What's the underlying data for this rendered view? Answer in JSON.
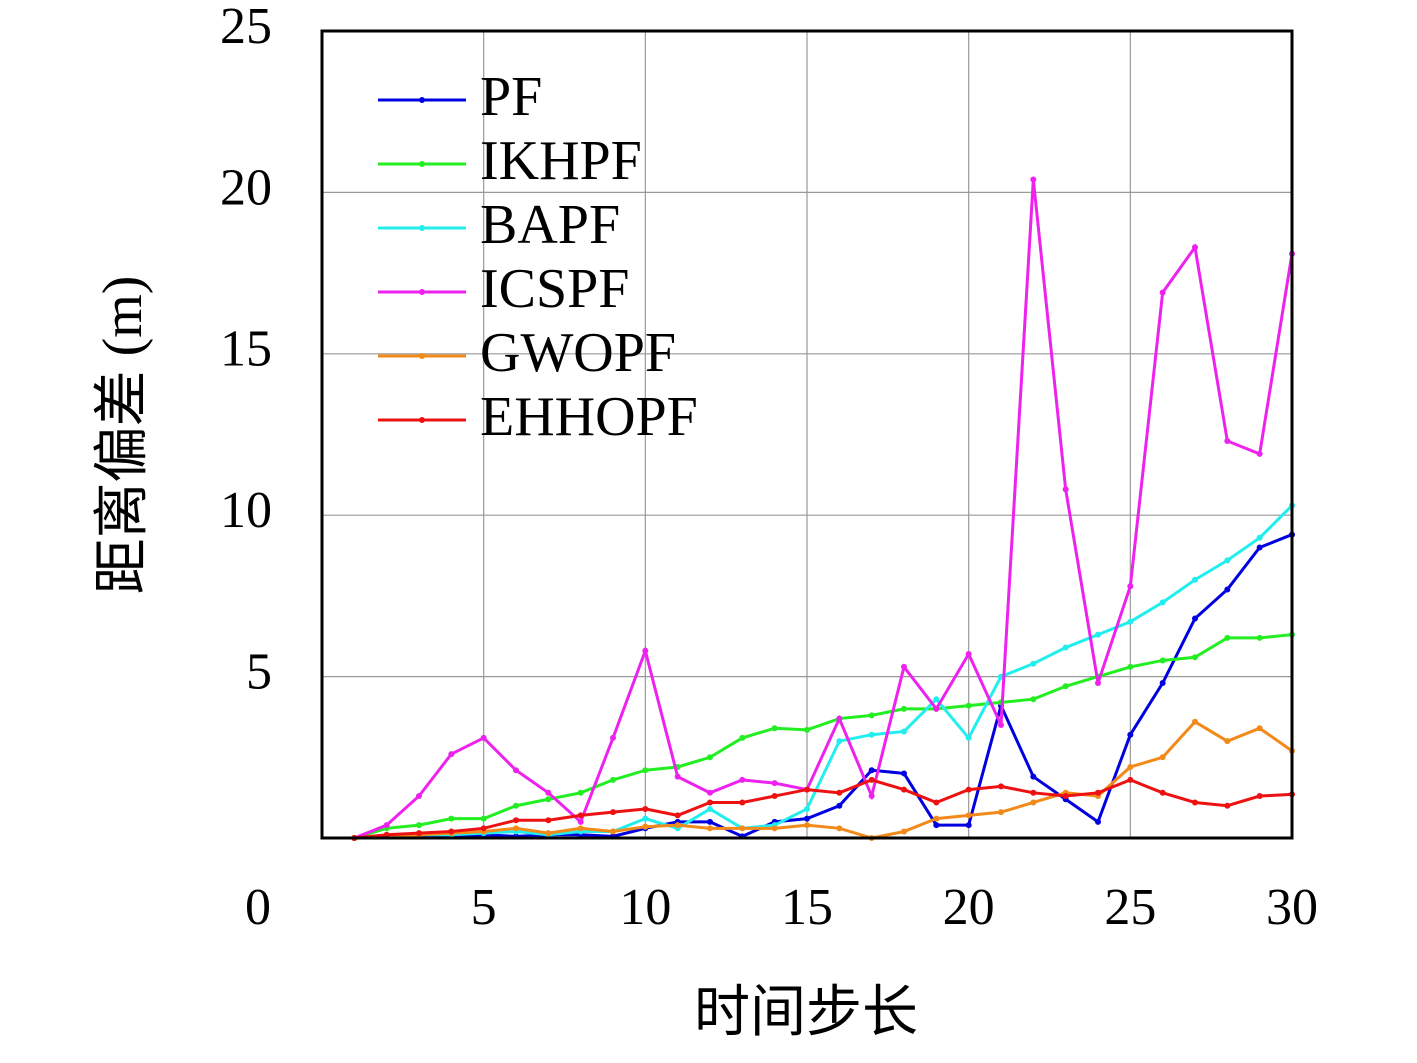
{
  "chart_data": {
    "type": "line",
    "xlabel": "时间步长",
    "ylabel": "距离偏差 (m)",
    "x": [
      1,
      2,
      3,
      4,
      5,
      6,
      7,
      8,
      9,
      10,
      11,
      12,
      13,
      14,
      15,
      16,
      17,
      18,
      19,
      20,
      21,
      22,
      23,
      24,
      25,
      26,
      27,
      28,
      29,
      30
    ],
    "series": [
      {
        "name": "PF",
        "color": "#0000e0",
        "values": [
          0,
          0.05,
          0.05,
          0.05,
          0.1,
          0.05,
          0.1,
          0.1,
          0.05,
          0.3,
          0.5,
          0.5,
          0.05,
          0.5,
          0.6,
          1.0,
          2.1,
          2.0,
          0.4,
          0.4,
          4.1,
          1.9,
          1.2,
          0.5,
          3.2,
          4.8,
          6.8,
          7.7,
          9.0,
          9.4
        ]
      },
      {
        "name": "IKHPF",
        "color": "#22ee22",
        "values": [
          0,
          0.3,
          0.4,
          0.6,
          0.6,
          1.0,
          1.2,
          1.4,
          1.8,
          2.1,
          2.2,
          2.5,
          3.1,
          3.4,
          3.35,
          3.7,
          3.8,
          4.0,
          4.0,
          4.1,
          4.2,
          4.3,
          4.7,
          5.0,
          5.3,
          5.5,
          5.6,
          6.2,
          6.2,
          6.3
        ]
      },
      {
        "name": "BAPF",
        "color": "#22eeee",
        "values": [
          0,
          0.05,
          0.1,
          0.1,
          0.15,
          0.2,
          0.1,
          0.2,
          0.2,
          0.6,
          0.3,
          0.9,
          0.3,
          0.4,
          0.9,
          3.0,
          3.2,
          3.3,
          4.3,
          3.1,
          5.0,
          5.4,
          5.9,
          6.3,
          6.7,
          7.3,
          8.0,
          8.6,
          9.3,
          10.3
        ]
      },
      {
        "name": "ICSPF",
        "color": "#ee22ee",
        "values": [
          0,
          0.4,
          1.3,
          2.6,
          3.1,
          2.1,
          1.4,
          0.5,
          3.1,
          5.8,
          1.9,
          1.4,
          1.8,
          1.7,
          1.5,
          3.7,
          1.3,
          5.3,
          4.0,
          5.7,
          3.5,
          20.4,
          10.8,
          4.8,
          7.8,
          16.9,
          18.3,
          12.3,
          11.9,
          18.1
        ]
      },
      {
        "name": "GWOPF",
        "color": "#f28a1a",
        "values": [
          0,
          0.05,
          0.1,
          0.15,
          0.2,
          0.3,
          0.15,
          0.3,
          0.2,
          0.35,
          0.4,
          0.3,
          0.3,
          0.3,
          0.4,
          0.3,
          0.0,
          0.2,
          0.6,
          0.7,
          0.8,
          1.1,
          1.4,
          1.3,
          2.2,
          2.5,
          3.6,
          3.0,
          3.4,
          2.7
        ]
      },
      {
        "name": "EHHOPF",
        "color": "#ee1111",
        "values": [
          0,
          0.1,
          0.15,
          0.2,
          0.3,
          0.55,
          0.55,
          0.7,
          0.8,
          0.9,
          0.7,
          1.1,
          1.1,
          1.3,
          1.5,
          1.4,
          1.8,
          1.5,
          1.1,
          1.5,
          1.6,
          1.4,
          1.3,
          1.4,
          1.8,
          1.4,
          1.1,
          1.0,
          1.3,
          1.35
        ]
      }
    ],
    "xlim": [
      0,
      30
    ],
    "xticks": [
      0,
      5,
      10,
      15,
      20,
      25,
      30
    ],
    "ylim": [
      0,
      25
    ],
    "yticks": [
      5,
      10,
      15,
      20,
      25
    ],
    "grid": true,
    "legend": "upper left"
  }
}
